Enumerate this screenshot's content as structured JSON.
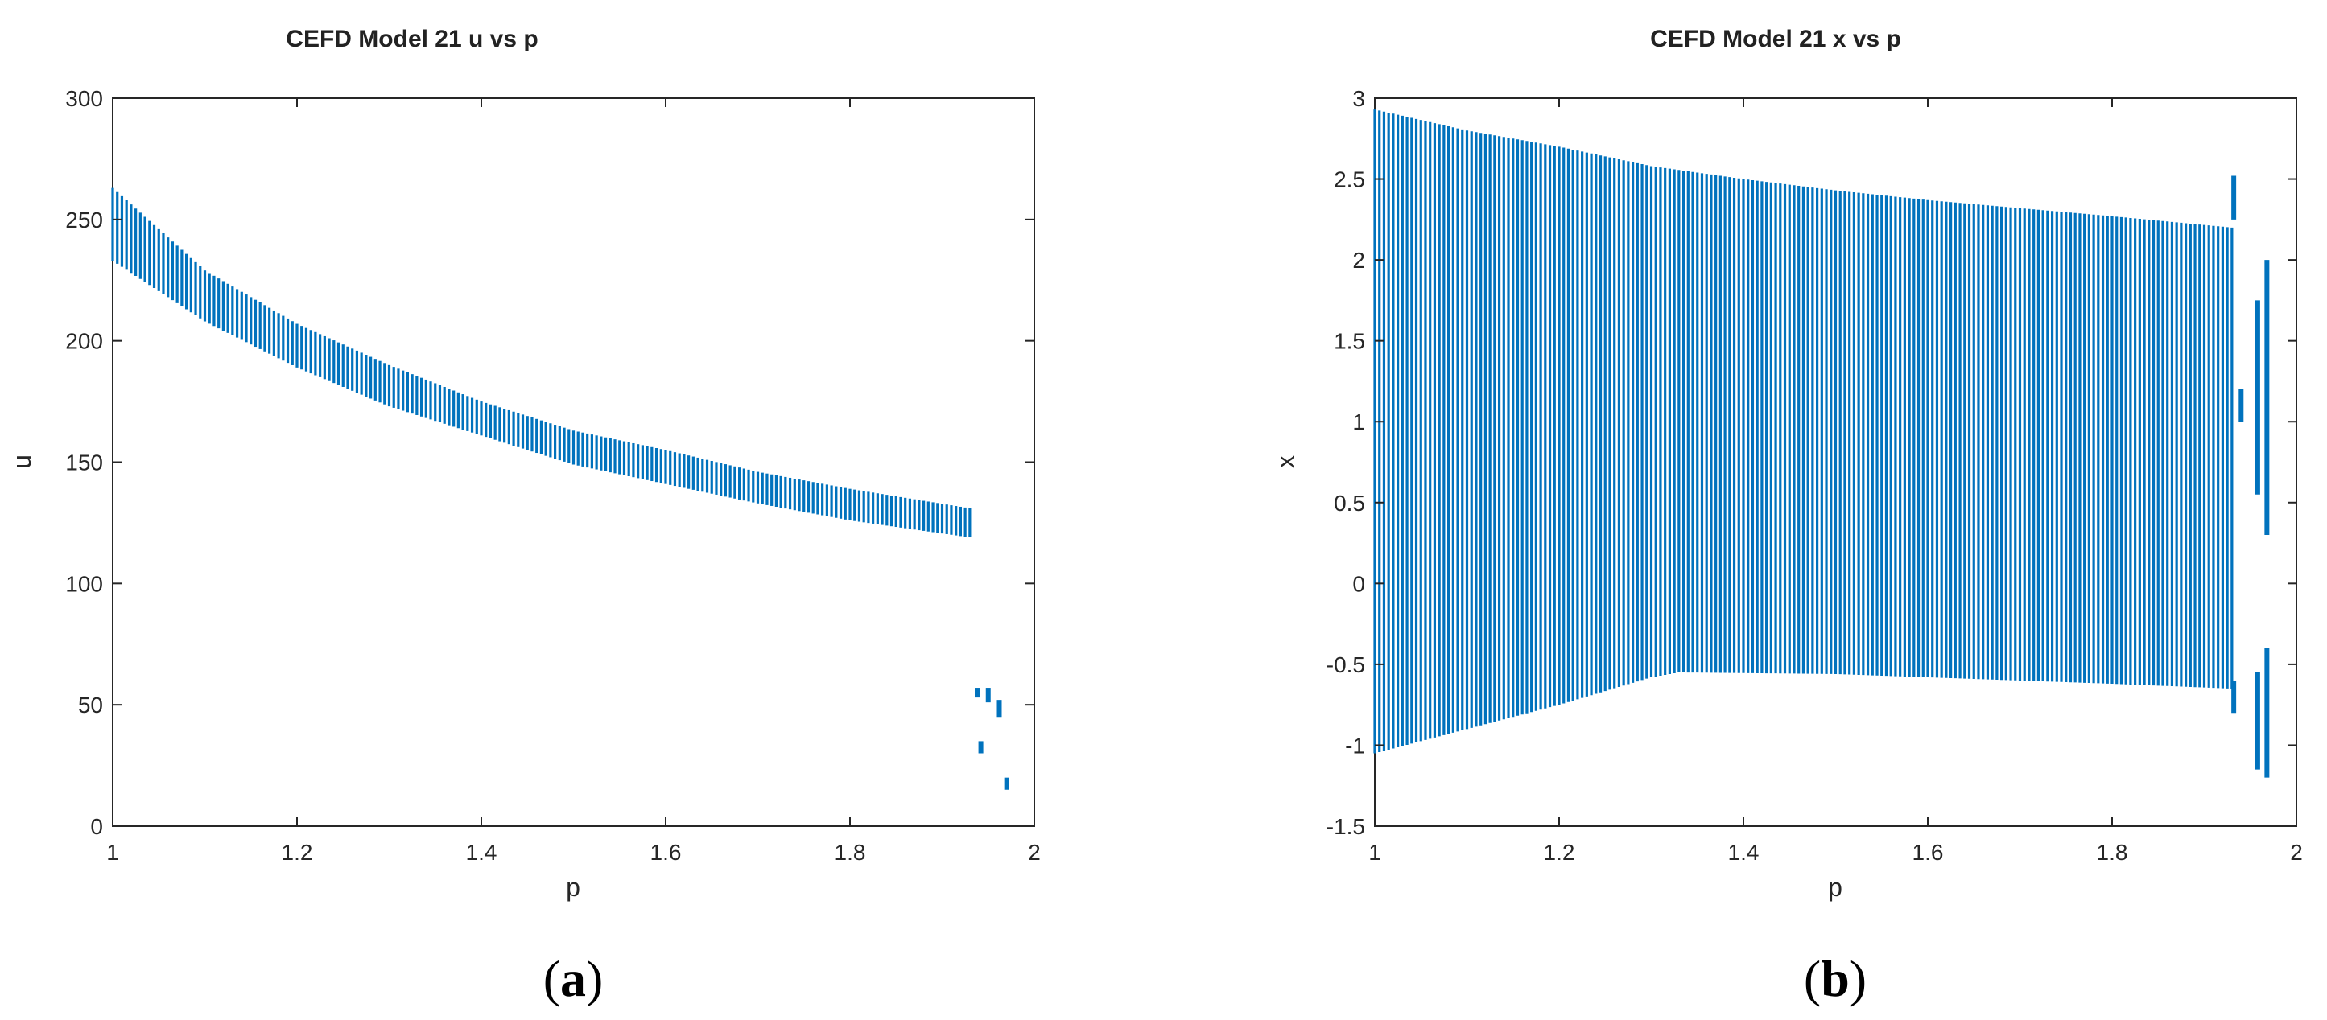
{
  "colors": {
    "series": "#0072bd",
    "axis": "#262626",
    "background": "#ffffff"
  },
  "panels": [
    {
      "caption_open": "(",
      "caption_letter": "a",
      "caption_close": ")"
    },
    {
      "caption_open": "(",
      "caption_letter": "b",
      "caption_close": ")"
    }
  ],
  "chart_data": [
    {
      "type": "scatter",
      "title": "CEFD Model 21 u vs p",
      "xlabel": "p",
      "ylabel": "u",
      "xlim": [
        1,
        2
      ],
      "ylim": [
        0,
        300
      ],
      "xticks": [
        1,
        1.2,
        1.4,
        1.6,
        1.8,
        2
      ],
      "yticks": [
        0,
        50,
        100,
        150,
        200,
        250,
        300
      ],
      "xtick_labels": [
        "1",
        "1.2",
        "1.4",
        "1.6",
        "1.8",
        "2"
      ],
      "ytick_labels": [
        "0",
        "50",
        "100",
        "150",
        "200",
        "250",
        "300"
      ],
      "grid": false,
      "legend": "none",
      "series": [
        {
          "band": {
            "p_range": [
              1.0,
              1.93
            ],
            "p_step": 0.005,
            "upper": [
              [
                1.0,
                263
              ],
              [
                1.1,
                229
              ],
              [
                1.2,
                207
              ],
              [
                1.3,
                190
              ],
              [
                1.4,
                175
              ],
              [
                1.5,
                163
              ],
              [
                1.6,
                155
              ],
              [
                1.7,
                146
              ],
              [
                1.8,
                139
              ],
              [
                1.93,
                131
              ]
            ],
            "lower": [
              [
                1.0,
                233
              ],
              [
                1.1,
                208
              ],
              [
                1.2,
                189
              ],
              [
                1.3,
                173
              ],
              [
                1.4,
                161
              ],
              [
                1.5,
                149
              ],
              [
                1.6,
                141
              ],
              [
                1.7,
                133
              ],
              [
                1.8,
                126
              ],
              [
                1.93,
                119
              ]
            ]
          },
          "isolated_segments": [
            {
              "p": 1.938,
              "u_min": 53,
              "u_max": 57
            },
            {
              "p": 1.942,
              "u_min": 30,
              "u_max": 35
            },
            {
              "p": 1.95,
              "u_min": 51,
              "u_max": 57
            },
            {
              "p": 1.962,
              "u_min": 45,
              "u_max": 52
            },
            {
              "p": 1.97,
              "u_min": 15,
              "u_max": 20
            }
          ]
        }
      ]
    },
    {
      "type": "scatter",
      "title": "CEFD Model 21  x vs p",
      "xlabel": "p",
      "ylabel": "x",
      "xlim": [
        1,
        2
      ],
      "ylim": [
        -1.5,
        3
      ],
      "xticks": [
        1,
        1.2,
        1.4,
        1.6,
        1.8,
        2
      ],
      "yticks": [
        -1.5,
        -1,
        -0.5,
        0,
        0.5,
        1,
        1.5,
        2,
        2.5,
        3
      ],
      "xtick_labels": [
        "1",
        "1.2",
        "1.4",
        "1.6",
        "1.8",
        "2"
      ],
      "ytick_labels": [
        "-1.5",
        "-1",
        "-0.5",
        "0",
        "0.5",
        "1",
        "1.5",
        "2",
        "2.5",
        "3"
      ],
      "grid": false,
      "legend": "none",
      "series": [
        {
          "band": {
            "p_range": [
              1.0,
              1.93
            ],
            "p_step": 0.005,
            "upper": [
              [
                1.0,
                2.93
              ],
              [
                1.1,
                2.8
              ],
              [
                1.2,
                2.7
              ],
              [
                1.3,
                2.58
              ],
              [
                1.4,
                2.5
              ],
              [
                1.5,
                2.43
              ],
              [
                1.6,
                2.37
              ],
              [
                1.7,
                2.32
              ],
              [
                1.8,
                2.27
              ],
              [
                1.93,
                2.2
              ]
            ],
            "lower": [
              [
                1.0,
                -1.05
              ],
              [
                1.1,
                -0.9
              ],
              [
                1.2,
                -0.75
              ],
              [
                1.3,
                -0.58
              ],
              [
                1.33,
                -0.55
              ],
              [
                1.5,
                -0.56
              ],
              [
                1.6,
                -0.58
              ],
              [
                1.7,
                -0.6
              ],
              [
                1.8,
                -0.62
              ],
              [
                1.93,
                -0.65
              ]
            ],
            "inner_lower": [
              [
                1.0,
                -0.5
              ],
              [
                1.33,
                -0.55
              ],
              [
                1.93,
                -0.65
              ]
            ]
          },
          "isolated_segments": [
            {
              "p": 1.932,
              "x_min": 2.25,
              "x_max": 2.52
            },
            {
              "p": 1.932,
              "x_min": -0.8,
              "x_max": -0.6
            },
            {
              "p": 1.94,
              "x_min": 1.0,
              "x_max": 1.2
            },
            {
              "p": 1.958,
              "x_min": 0.55,
              "x_max": 1.75
            },
            {
              "p": 1.958,
              "x_min": -1.15,
              "x_max": -0.55
            },
            {
              "p": 1.968,
              "x_min": 0.3,
              "x_max": 2.0
            },
            {
              "p": 1.968,
              "x_min": -1.2,
              "x_max": -0.4
            }
          ]
        }
      ]
    }
  ]
}
